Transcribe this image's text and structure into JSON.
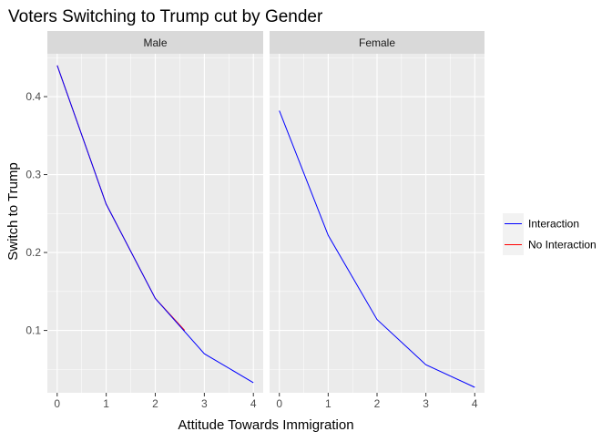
{
  "chart_data": {
    "type": "line",
    "title": "Voters Switching to Trump cut by Gender",
    "xlabel": "Attitude Towards Immigration",
    "ylabel": "Switch to Trump",
    "xlim": [
      -0.2,
      4.2
    ],
    "ylim": [
      0.02,
      0.455
    ],
    "x_ticks": [
      0,
      1,
      2,
      3,
      4
    ],
    "y_ticks": [
      0.1,
      0.2,
      0.3,
      0.4
    ],
    "y_tick_labels": [
      "0.1",
      "0.2",
      "0.3",
      "0.4"
    ],
    "grid": true,
    "legend_position": "right",
    "facets": [
      {
        "label": "Male",
        "series": [
          {
            "name": "Interaction",
            "x": [
              0,
              1,
              2,
              3,
              4
            ],
            "values": [
              0.44,
              0.262,
              0.141,
              0.07,
              0.033
            ]
          },
          {
            "name": "No Interaction",
            "x": [
              0,
              1,
              2,
              2.6
            ],
            "values": [
              0.44,
              0.262,
              0.141,
              0.1
            ]
          }
        ]
      },
      {
        "label": "Female",
        "series": [
          {
            "name": "Interaction",
            "x": [
              0,
              1,
              2,
              3,
              4
            ],
            "values": [
              0.382,
              0.222,
              0.114,
              0.056,
              0.027
            ]
          }
        ]
      }
    ],
    "legend": [
      {
        "name": "Interaction",
        "color": "#0000ff"
      },
      {
        "name": "No Interaction",
        "color": "#ff0000"
      }
    ],
    "colors": {
      "panel": "#ebebeb",
      "strip": "#d9d9d9",
      "grid": "#ffffff"
    }
  }
}
